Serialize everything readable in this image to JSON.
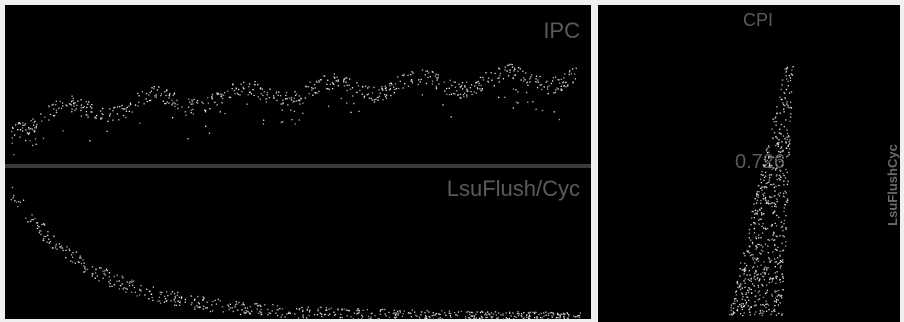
{
  "panels": {
    "left": {
      "top": {
        "label": "IPC"
      },
      "bottom": {
        "label": "LsuFlush/Cyc"
      }
    },
    "right": {
      "title": "CPI",
      "value_label": "0.726",
      "side_label": "LsuFlushCyc"
    }
  }
}
